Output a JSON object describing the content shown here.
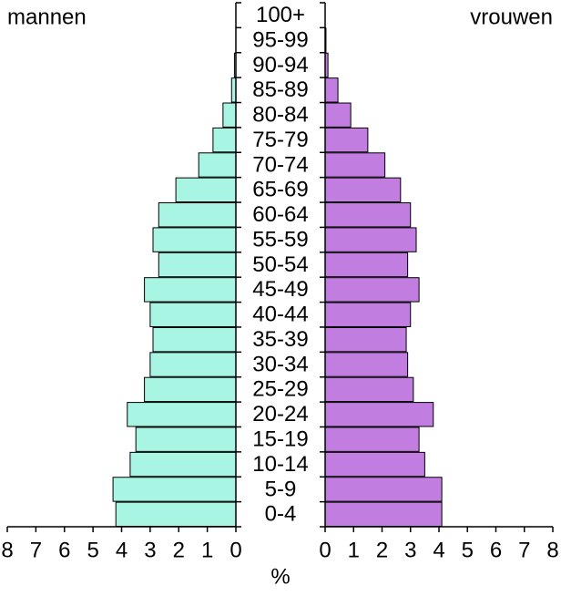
{
  "chart_data": {
    "type": "population-pyramid",
    "categories": [
      "0-4",
      "5-9",
      "10-14",
      "15-19",
      "20-24",
      "25-29",
      "30-34",
      "35-39",
      "40-44",
      "45-49",
      "50-54",
      "55-59",
      "60-64",
      "65-69",
      "70-74",
      "75-79",
      "80-84",
      "85-89",
      "90-94",
      "95-99",
      "100+"
    ],
    "series": [
      {
        "name": "mannen",
        "color": "#a8f5e4",
        "values": [
          4.2,
          4.3,
          3.7,
          3.5,
          3.8,
          3.2,
          3.0,
          2.9,
          3.0,
          3.2,
          2.7,
          2.9,
          2.7,
          2.1,
          1.3,
          0.8,
          0.45,
          0.15,
          0.05,
          0,
          0
        ]
      },
      {
        "name": "vrouwen",
        "color": "#c17de0",
        "values": [
          4.1,
          4.1,
          3.5,
          3.3,
          3.8,
          3.1,
          2.9,
          2.85,
          3.0,
          3.3,
          2.9,
          3.2,
          3.0,
          2.65,
          2.1,
          1.5,
          0.9,
          0.45,
          0.1,
          0.03,
          0
        ]
      }
    ],
    "xlim": [
      0,
      8
    ],
    "xticks": [
      0,
      1,
      2,
      3,
      4,
      5,
      6,
      7,
      8
    ],
    "x_label": "%"
  }
}
